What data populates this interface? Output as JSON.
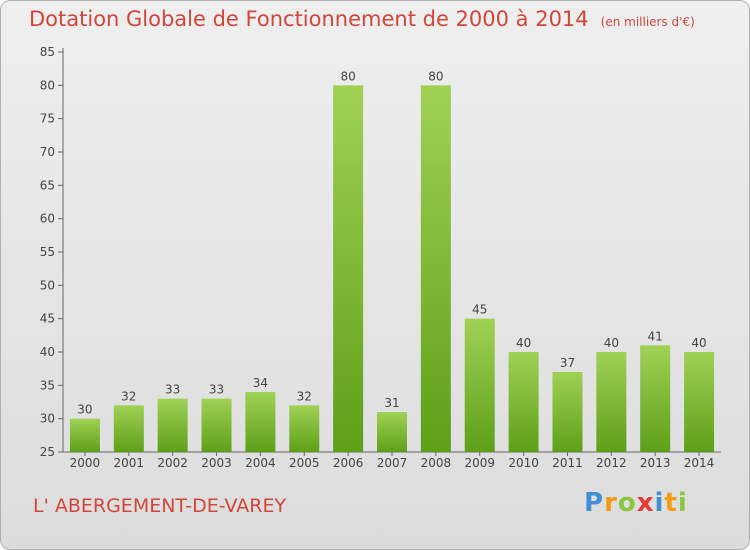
{
  "title": "Dotation Globale de Fonctionnement de 2000 à 2014",
  "subtitle": "(en milliers d'€)",
  "commune": "L' ABERGEMENT-DE-VAREY",
  "logo": {
    "text": "Proxiti",
    "letters": [
      "P",
      "r",
      "o",
      "x",
      "i",
      "t",
      "i"
    ],
    "colors": [
      "#3f8fd2",
      "#f39c12",
      "#8cc63f",
      "#e53935",
      "#3f8fd2",
      "#f39c12",
      "#8cc63f"
    ]
  },
  "colors": {
    "accent": "#d2463a",
    "bar_light": "#9fd155",
    "bar_dark": "#5e9f18"
  },
  "chart_data": {
    "type": "bar",
    "title": "Dotation Globale de Fonctionnement de 2000 à 2014",
    "subtitle": "(en milliers d'€)",
    "categories": [
      "2000",
      "2001",
      "2002",
      "2003",
      "2004",
      "2005",
      "2006",
      "2007",
      "2008",
      "2009",
      "2010",
      "2011",
      "2012",
      "2013",
      "2014"
    ],
    "values": [
      30,
      32,
      33,
      33,
      34,
      32,
      80,
      31,
      80,
      45,
      40,
      37,
      40,
      41,
      40
    ],
    "ylim": [
      25,
      85
    ],
    "yticks": [
      25,
      30,
      35,
      40,
      45,
      50,
      55,
      60,
      65,
      70,
      75,
      80,
      85
    ],
    "grid": false,
    "data_labels": true
  }
}
